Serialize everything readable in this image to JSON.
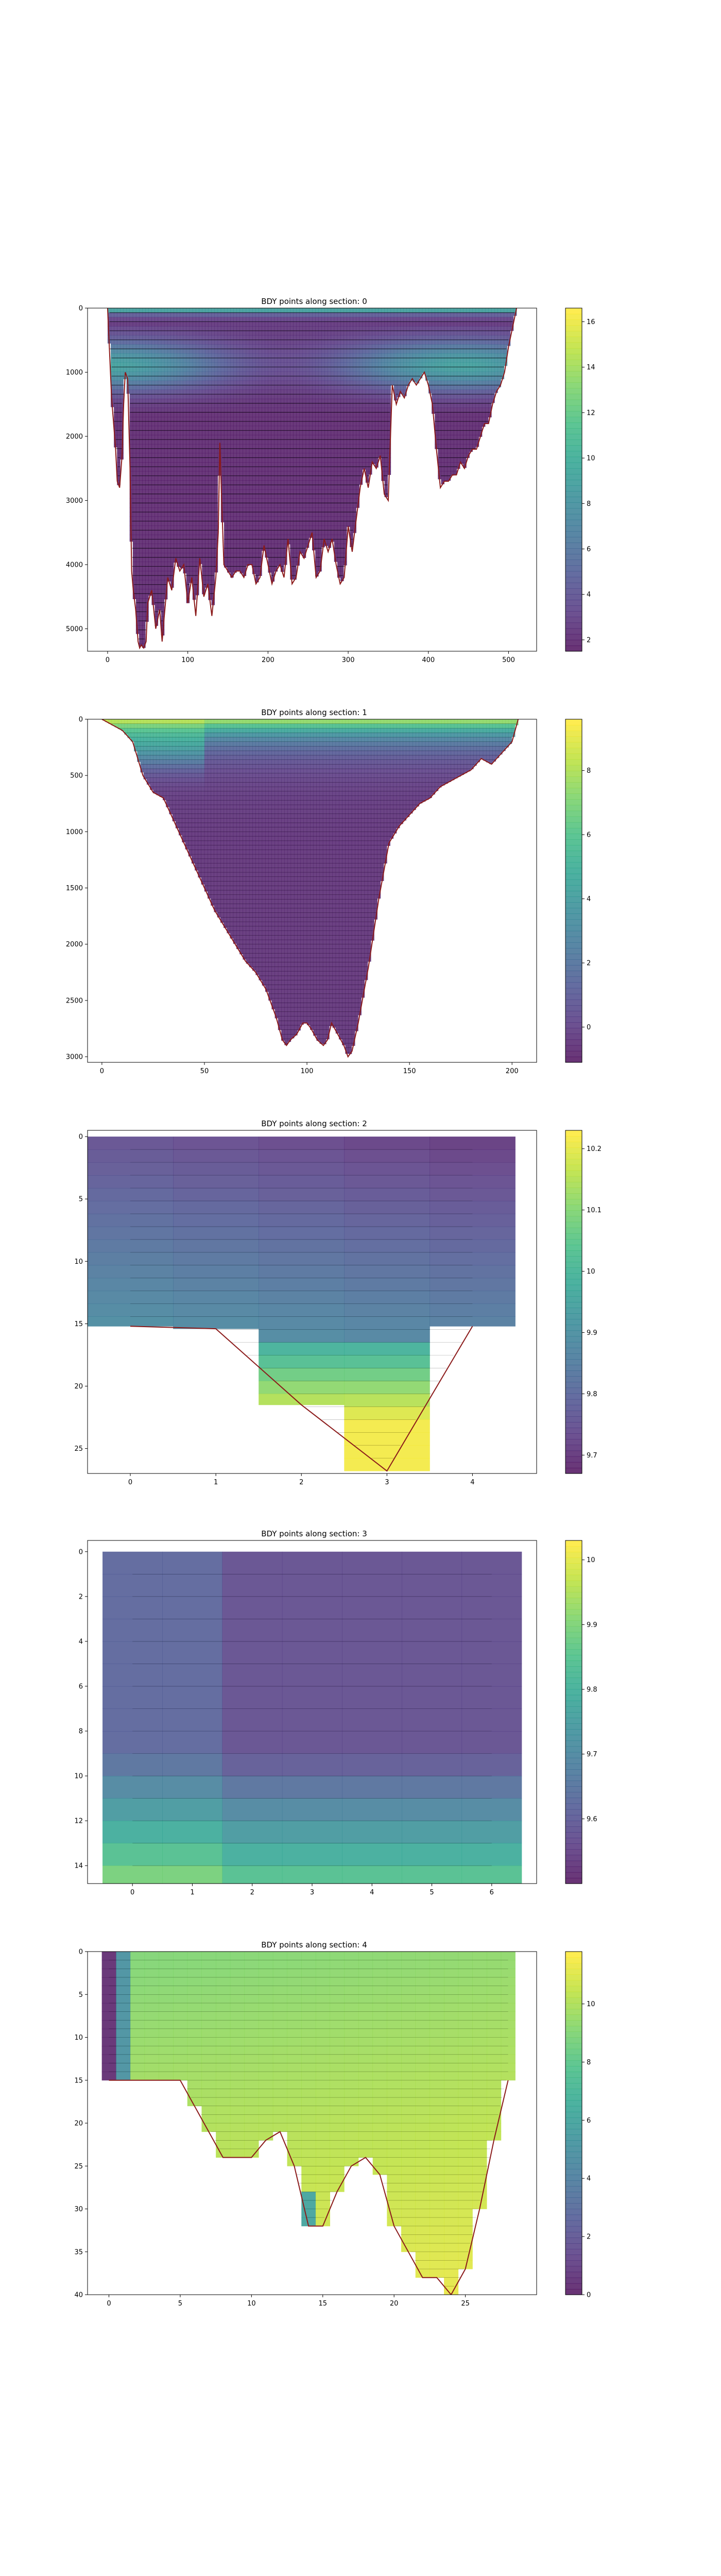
{
  "colormap": {
    "name": "viridis",
    "stops": [
      "#440154",
      "#482878",
      "#3e4989",
      "#31688e",
      "#26828e",
      "#1f9e89",
      "#35b779",
      "#6ece58",
      "#b5de2b",
      "#fde725"
    ],
    "alpha": 0.8
  },
  "chart_data": [
    {
      "type": "heatmap",
      "title": "BDY points along section: 0",
      "xlim": [
        -25,
        535
      ],
      "ylim": [
        5350,
        0
      ],
      "xticks": [
        0,
        100,
        200,
        300,
        400,
        500
      ],
      "yticks": [
        0,
        1000,
        2000,
        3000,
        4000,
        5000
      ],
      "clim": [
        1.5,
        16.6
      ],
      "cbar_ticks": [
        2,
        4,
        6,
        8,
        10,
        12,
        14,
        16
      ],
      "bathymetry_x": [
        0,
        5,
        10,
        12,
        15,
        18,
        20,
        22,
        25,
        28,
        30,
        32,
        35,
        38,
        40,
        42,
        45,
        48,
        50,
        55,
        60,
        65,
        68,
        70,
        75,
        80,
        85,
        90,
        95,
        100,
        105,
        110,
        115,
        120,
        125,
        130,
        135,
        138,
        140,
        142,
        145,
        150,
        155,
        160,
        165,
        170,
        175,
        180,
        185,
        190,
        195,
        200,
        205,
        210,
        215,
        220,
        225,
        230,
        235,
        240,
        245,
        250,
        255,
        260,
        265,
        270,
        275,
        280,
        285,
        290,
        295,
        300,
        305,
        310,
        315,
        320,
        325,
        330,
        335,
        340,
        345,
        350,
        355,
        360,
        365,
        370,
        375,
        380,
        385,
        390,
        395,
        400,
        405,
        410,
        415,
        420,
        425,
        430,
        435,
        440,
        445,
        450,
        455,
        460,
        465,
        470,
        475,
        480,
        485,
        490,
        495,
        500,
        505,
        510
      ],
      "bathymetry_depth": [
        0,
        1400,
        2200,
        2700,
        2800,
        2300,
        1500,
        1000,
        1100,
        2500,
        4100,
        4400,
        4700,
        5200,
        5300,
        5250,
        5300,
        5200,
        4600,
        4400,
        5000,
        4700,
        5200,
        4900,
        4200,
        4400,
        3900,
        4100,
        4000,
        4600,
        4200,
        4800,
        3900,
        4500,
        4300,
        4800,
        4200,
        3500,
        2100,
        2900,
        4000,
        4100,
        4200,
        4100,
        4100,
        4200,
        4000,
        4000,
        4300,
        4200,
        3700,
        4000,
        4300,
        4100,
        4000,
        4200,
        3600,
        4300,
        4200,
        3800,
        3900,
        3700,
        3500,
        4200,
        4100,
        3600,
        3800,
        3600,
        4000,
        4300,
        4200,
        3400,
        3800,
        3300,
        2800,
        2500,
        2800,
        2400,
        2500,
        2300,
        2900,
        3000,
        1200,
        1500,
        1300,
        1400,
        1200,
        1100,
        1200,
        1100,
        1000,
        1200,
        1500,
        2200,
        2800,
        2700,
        2700,
        2600,
        2600,
        2400,
        2500,
        2300,
        2200,
        2200,
        2000,
        1800,
        1800,
        1500,
        1300,
        1200,
        1000,
        600,
        300,
        0
      ],
      "n_levels": 75
    },
    {
      "type": "heatmap",
      "title": "BDY points along section: 1",
      "xlim": [
        -7,
        212
      ],
      "ylim": [
        3050,
        0
      ],
      "xticks": [
        0,
        50,
        100,
        150,
        200
      ],
      "yticks": [
        0,
        500,
        1000,
        1500,
        2000,
        2500,
        3000
      ],
      "clim": [
        -1.1,
        9.6
      ],
      "cbar_ticks": [
        0,
        2,
        4,
        6,
        8
      ],
      "bathymetry_x": [
        0,
        5,
        10,
        15,
        20,
        25,
        30,
        35,
        40,
        45,
        50,
        55,
        60,
        65,
        70,
        75,
        80,
        85,
        88,
        90,
        92,
        95,
        98,
        100,
        102,
        105,
        108,
        110,
        112,
        115,
        118,
        120,
        122,
        125,
        128,
        130,
        135,
        140,
        145,
        150,
        155,
        160,
        165,
        170,
        175,
        180,
        185,
        190,
        195,
        200,
        203
      ],
      "bathymetry_depth": [
        0,
        50,
        100,
        200,
        500,
        650,
        700,
        900,
        1100,
        1300,
        1500,
        1700,
        1850,
        2000,
        2150,
        2250,
        2400,
        2650,
        2850,
        2900,
        2850,
        2800,
        2700,
        2700,
        2750,
        2850,
        2900,
        2850,
        2700,
        2800,
        2900,
        3000,
        2950,
        2700,
        2400,
        2200,
        1600,
        1100,
        950,
        850,
        750,
        700,
        600,
        550,
        500,
        450,
        350,
        400,
        300,
        200,
        0
      ],
      "n_levels": 75
    },
    {
      "type": "heatmap",
      "title": "BDY points along section: 2",
      "xlim": [
        -0.5,
        4.75
      ],
      "ylim": [
        27,
        -0.5
      ],
      "xticks": [
        0,
        1,
        2,
        3,
        4
      ],
      "yticks": [
        0,
        5,
        10,
        15,
        20,
        25
      ],
      "clim": [
        9.67,
        10.23
      ],
      "cbar_ticks": [
        9.7,
        9.8,
        9.9,
        10.0,
        10.1,
        10.2
      ],
      "bathymetry_x": [
        0,
        1,
        2,
        3,
        4
      ],
      "bathymetry_depth": [
        15.2,
        15.4,
        21.5,
        26.8,
        15.2
      ],
      "n_levels": 26
    },
    {
      "type": "heatmap",
      "title": "BDY points along section: 3",
      "xlim": [
        -0.75,
        6.75
      ],
      "ylim": [
        14.8,
        -0.5
      ],
      "xticks": [
        0,
        1,
        2,
        3,
        4,
        5,
        6
      ],
      "yticks": [
        0,
        2,
        4,
        6,
        8,
        10,
        12,
        14
      ],
      "clim": [
        9.5,
        10.03
      ],
      "cbar_ticks": [
        9.6,
        9.7,
        9.8,
        9.9,
        10.0
      ],
      "bathymetry_x": [
        0,
        6
      ],
      "bathymetry_depth": [
        15,
        15
      ],
      "n_levels": 15
    },
    {
      "type": "heatmap",
      "title": "BDY points along section: 4",
      "xlim": [
        -1.5,
        30
      ],
      "ylim": [
        40,
        0
      ],
      "xticks": [
        0,
        5,
        10,
        15,
        20,
        25
      ],
      "yticks": [
        0,
        5,
        10,
        15,
        20,
        25,
        30,
        35,
        40
      ],
      "clim": [
        0,
        11.8
      ],
      "cbar_ticks": [
        0,
        2,
        4,
        6,
        8,
        10
      ],
      "bathymetry_x": [
        0,
        1,
        2,
        3,
        4,
        5,
        6,
        7,
        8,
        9,
        10,
        11,
        12,
        13,
        14,
        15,
        16,
        17,
        18,
        19,
        20,
        21,
        22,
        23,
        24,
        25,
        26,
        27,
        28
      ],
      "bathymetry_depth": [
        15,
        15,
        15,
        15,
        15,
        15,
        18,
        21,
        24,
        24,
        24,
        22,
        21,
        25,
        32,
        32,
        28,
        25,
        24,
        26,
        32,
        35,
        38,
        38,
        40,
        37,
        30,
        22,
        15
      ],
      "n_levels": 40
    }
  ]
}
